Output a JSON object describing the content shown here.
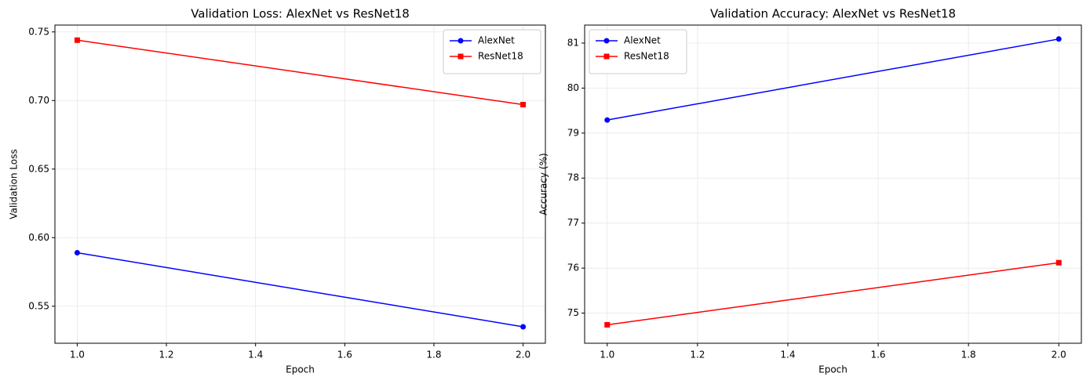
{
  "chart_data": [
    {
      "type": "line",
      "title": "Validation Loss: AlexNet vs ResNet18",
      "xlabel": "Epoch",
      "ylabel": "Validation Loss",
      "x": [
        1,
        2
      ],
      "series": [
        {
          "name": "AlexNet",
          "color": "#0000ff",
          "marker": "circle",
          "values": [
            0.589,
            0.535
          ]
        },
        {
          "name": "ResNet18",
          "color": "#ff0000",
          "marker": "square",
          "values": [
            0.744,
            0.697
          ]
        }
      ],
      "xlim": [
        0.95,
        2.05
      ],
      "xticks": [
        {
          "value": 1,
          "label": "1.0"
        },
        1.2,
        1.4,
        1.6,
        1.8,
        {
          "value": 2,
          "label": "2.0"
        }
      ],
      "ylim": [
        0.523,
        0.755
      ],
      "yticks": [
        0.55,
        {
          "value": 0.6,
          "label": "0.60"
        },
        0.65,
        {
          "value": 0.7,
          "label": "0.70"
        },
        0.75
      ],
      "grid": true,
      "legend": "upper right"
    },
    {
      "type": "line",
      "title": "Validation Accuracy: AlexNet vs ResNet18",
      "xlabel": "Epoch",
      "ylabel": "Accuracy (%)",
      "x": [
        1,
        2
      ],
      "series": [
        {
          "name": "AlexNet",
          "color": "#0000ff",
          "marker": "circle",
          "values": [
            79.29,
            81.09
          ]
        },
        {
          "name": "ResNet18",
          "color": "#ff0000",
          "marker": "square",
          "values": [
            74.74,
            76.12
          ]
        }
      ],
      "xlim": [
        0.95,
        2.05
      ],
      "xticks": [
        {
          "value": 1,
          "label": "1.0"
        },
        1.2,
        1.4,
        1.6,
        1.8,
        {
          "value": 2,
          "label": "2.0"
        }
      ],
      "ylim": [
        74.33,
        81.4
      ],
      "yticks": [
        75,
        76,
        77,
        78,
        79,
        80,
        81
      ],
      "grid": true,
      "legend": "upper left"
    }
  ]
}
